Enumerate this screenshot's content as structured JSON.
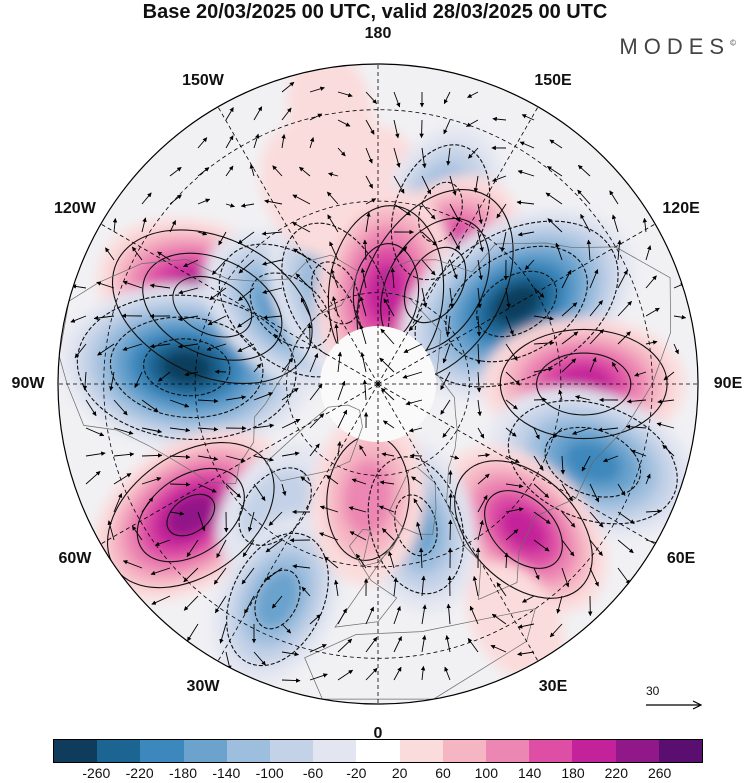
{
  "header": {
    "title": "Base 20/03/2025 00 UTC, valid 28/03/2025 00 UTC",
    "brand": "MODES",
    "brand_mark": "©"
  },
  "longitude_labels": [
    "180",
    "150E",
    "120E",
    "90E",
    "60E",
    "30E",
    "0",
    "30W",
    "60W",
    "90W",
    "120W",
    "150W"
  ],
  "vector_reference": {
    "value": "30"
  },
  "colorbar": {
    "colors": [
      "#0f3c5c",
      "#1c6593",
      "#3c88bd",
      "#6ba3cd",
      "#9ebede",
      "#c4d2e7",
      "#e3e6f1",
      "#ffffff",
      "#fbdcdc",
      "#f5b5c3",
      "#ec86b2",
      "#dd4ea4",
      "#c4229a",
      "#901888",
      "#5a0e70"
    ],
    "tick_labels": [
      "-260",
      "-220",
      "-180",
      "-140",
      "-100",
      "-60",
      "-20",
      "20",
      "60",
      "100",
      "140",
      "180",
      "220",
      "260"
    ]
  },
  "anomaly_centers": [
    {
      "lon": -115,
      "lat": 50,
      "value": 280
    },
    {
      "lon": -95,
      "lat": 48,
      "value": -300
    },
    {
      "lon": -55,
      "lat": 40,
      "value": 230
    },
    {
      "lon": -40,
      "lat": 55,
      "value": -80
    },
    {
      "lon": -25,
      "lat": 38,
      "value": -150
    },
    {
      "lon": -130,
      "lat": 65,
      "value": -190
    },
    {
      "lon": -155,
      "lat": 68,
      "value": -170
    },
    {
      "lon": -160,
      "lat": 45,
      "value": 60
    },
    {
      "lon": 180,
      "lat": 48,
      "value": 60
    },
    {
      "lon": 160,
      "lat": 50,
      "value": -150
    },
    {
      "lon": 150,
      "lat": 65,
      "value": 270
    },
    {
      "lon": 175,
      "lat": 70,
      "value": 220
    },
    {
      "lon": 120,
      "lat": 55,
      "value": -300
    },
    {
      "lon": 90,
      "lat": 45,
      "value": 200
    },
    {
      "lon": 70,
      "lat": 40,
      "value": -220
    },
    {
      "lon": 45,
      "lat": 45,
      "value": 190
    },
    {
      "lon": 15,
      "lat": 58,
      "value": -150
    },
    {
      "lon": -5,
      "lat": 65,
      "value": 140
    },
    {
      "lon": 30,
      "lat": 30,
      "value": 50
    },
    {
      "lon": -170,
      "lat": 30,
      "value": 50
    }
  ]
}
